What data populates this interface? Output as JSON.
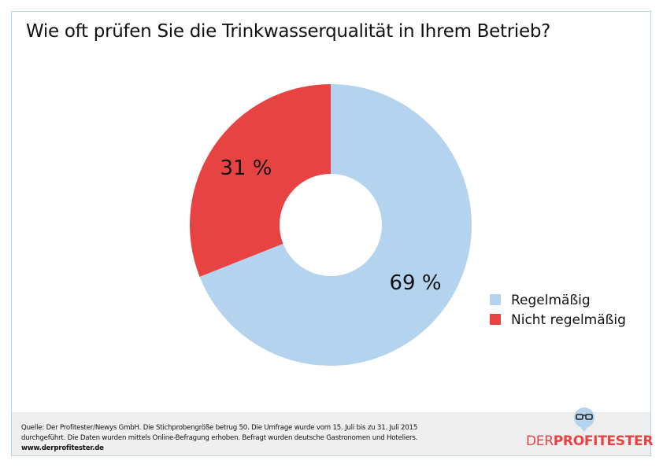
{
  "chart_data": {
    "type": "pie",
    "title": "Wie oft prüfen Sie die Trinkwasserqualität in Ihrem Betrieb?",
    "donut": true,
    "slices": [
      {
        "label": "Regelmäßig",
        "value": 69,
        "display": "69 %",
        "color": "#b3d3ee"
      },
      {
        "label": "Nicht regelmäßig",
        "value": 31,
        "display": "31 %",
        "color": "#e84343"
      }
    ],
    "legend_position": "right"
  },
  "footer": {
    "line1": "Quelle: Der Profitester/Newys GmbH. Die Stichprobengröße betrug 50. Die Umfrage wurde vom 15. Juli bis zu 31. Juli 2015",
    "line2": "durchgeführt. Die Daten wurden mittels Online-Befragung erhoben. Befragt wurden deutsche Gastronomen und Hoteliers.",
    "url": "www.derprofitester.de"
  },
  "logo": {
    "part1": "DER",
    "part2": "PROFITESTER"
  }
}
